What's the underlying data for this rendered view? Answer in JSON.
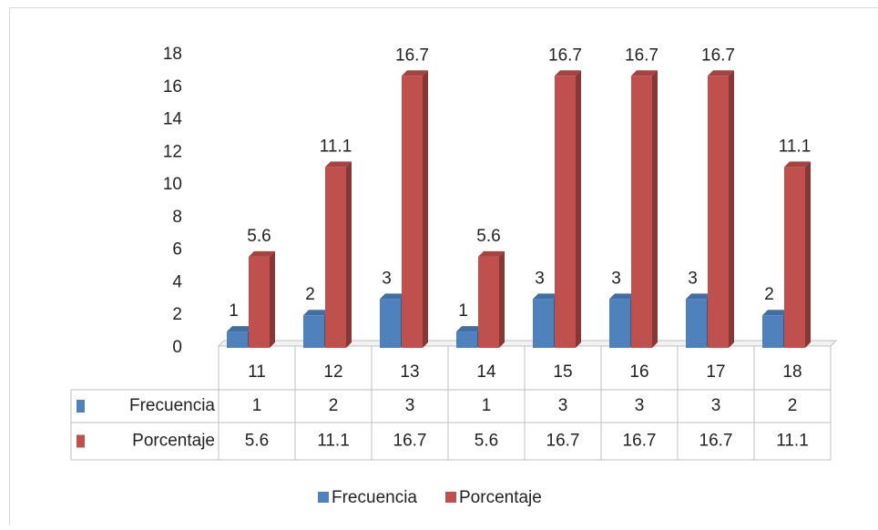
{
  "chart_data": {
    "type": "bar3d",
    "categories": [
      "11",
      "12",
      "13",
      "14",
      "15",
      "16",
      "17",
      "18"
    ],
    "series": [
      {
        "name": "Frecuencia",
        "color": "#4f81bd",
        "values": [
          1,
          2,
          3,
          1,
          3,
          3,
          3,
          2
        ]
      },
      {
        "name": "Porcentaje",
        "color": "#c0504d",
        "values": [
          5.6,
          11.1,
          16.7,
          5.6,
          16.7,
          16.7,
          16.7,
          11.1
        ]
      }
    ],
    "ylim": [
      0,
      18
    ],
    "yticks": [
      0,
      2,
      4,
      6,
      8,
      10,
      12,
      14,
      16,
      18
    ],
    "grid": false,
    "data_table": true,
    "legend": "bottom"
  }
}
